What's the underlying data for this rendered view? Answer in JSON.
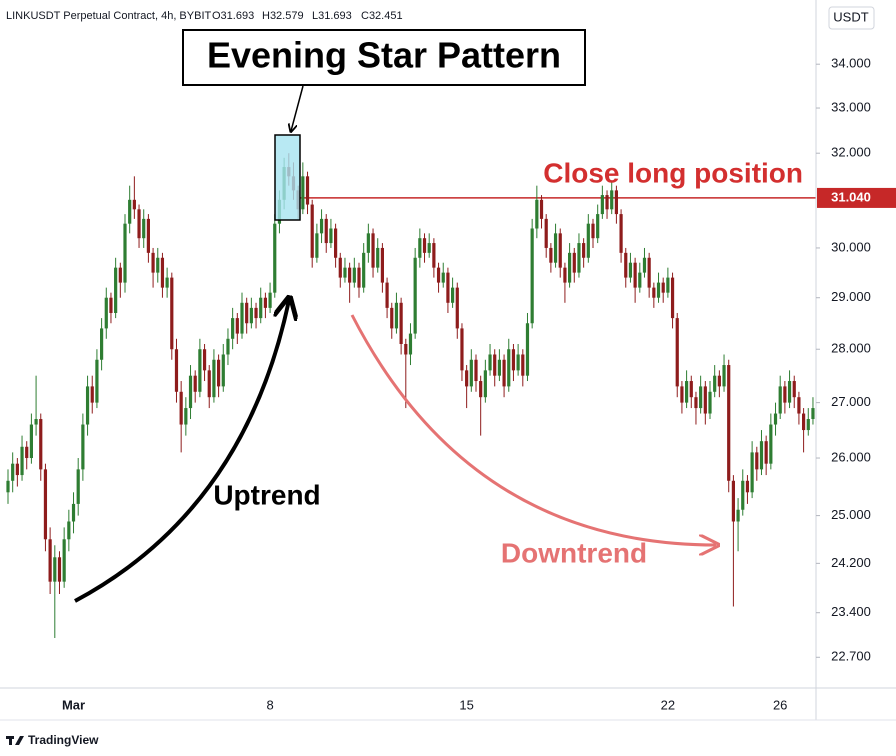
{
  "chart_data": {
    "type": "candlestick",
    "title": "LINKUSDT Perpetual Contract, 4h, BYBIT",
    "ohlc_legend": [
      "O31.693",
      "H32.579",
      "L31.693",
      "C32.451"
    ],
    "currency": "USDT",
    "brand": "TradingView",
    "log_scale": true,
    "up_color": "#2e7d32",
    "down_color": "#8e1c1c",
    "ylim": [
      22.23,
      35.52
    ],
    "yticks": [
      {
        "value": 34,
        "label": "34.000"
      },
      {
        "value": 33,
        "label": "33.000"
      },
      {
        "value": 32,
        "label": "32.000"
      },
      {
        "value": 30,
        "label": "30.000"
      },
      {
        "value": 29,
        "label": "29.000"
      },
      {
        "value": 28,
        "label": "28.000"
      },
      {
        "value": 27,
        "label": "27.000"
      },
      {
        "value": 26,
        "label": "26.000"
      },
      {
        "value": 25,
        "label": "25.000"
      },
      {
        "value": 24.2,
        "label": "24.200"
      },
      {
        "value": 23.4,
        "label": "23.400"
      },
      {
        "value": 22.7,
        "label": "22.700"
      }
    ],
    "hline": {
      "value": 31.04,
      "label": "31.040"
    },
    "annotations": {
      "pattern": "Evening Star Pattern",
      "hline_text": "Close long position",
      "uptrend": "Uptrend",
      "downtrend": "Downtrend"
    },
    "categories": [
      null,
      null,
      null,
      null,
      null,
      null,
      null,
      null,
      null,
      null,
      null,
      null,
      null,
      null,
      "Mar",
      null,
      null,
      null,
      null,
      null,
      null,
      null,
      null,
      null,
      null,
      null,
      null,
      null,
      null,
      null,
      null,
      null,
      null,
      null,
      null,
      null,
      null,
      null,
      null,
      null,
      null,
      null,
      null,
      null,
      null,
      null,
      null,
      null,
      null,
      null,
      null,
      null,
      null,
      null,
      null,
      null,
      "8",
      null,
      null,
      null,
      null,
      null,
      null,
      null,
      null,
      null,
      null,
      null,
      null,
      null,
      null,
      null,
      null,
      null,
      null,
      null,
      null,
      null,
      null,
      null,
      null,
      null,
      null,
      null,
      null,
      null,
      null,
      null,
      null,
      null,
      null,
      null,
      null,
      null,
      null,
      null,
      null,
      null,
      "15",
      null,
      null,
      null,
      null,
      null,
      null,
      null,
      null,
      null,
      null,
      null,
      null,
      null,
      null,
      null,
      null,
      null,
      null,
      null,
      null,
      null,
      null,
      null,
      null,
      null,
      null,
      null,
      null,
      null,
      null,
      null,
      null,
      null,
      null,
      null,
      null,
      null,
      null,
      null,
      null,
      null,
      null,
      "22",
      null,
      null,
      null,
      null,
      null,
      null,
      null,
      null,
      null,
      null,
      null,
      null,
      null,
      null,
      null,
      null,
      null,
      null,
      null,
      null,
      null,
      null,
      null,
      "26",
      null,
      null,
      null,
      null,
      null,
      null,
      null,
      null
    ],
    "ohlc": [
      [
        25.4,
        25.8,
        25.2,
        25.6
      ],
      [
        25.6,
        26.1,
        25.4,
        25.9
      ],
      [
        25.9,
        26.0,
        25.5,
        25.7
      ],
      [
        25.7,
        26.4,
        25.6,
        26.2
      ],
      [
        26.2,
        26.3,
        25.8,
        26.0
      ],
      [
        26.0,
        26.8,
        25.9,
        26.6
      ],
      [
        26.6,
        27.5,
        26.4,
        26.7
      ],
      [
        26.7,
        26.8,
        25.6,
        25.8
      ],
      [
        25.8,
        25.9,
        24.4,
        24.6
      ],
      [
        24.6,
        24.8,
        23.7,
        23.9
      ],
      [
        23.9,
        24.5,
        23.0,
        24.3
      ],
      [
        24.3,
        24.4,
        23.7,
        23.9
      ],
      [
        23.9,
        24.8,
        23.8,
        24.6
      ],
      [
        24.6,
        25.1,
        24.4,
        24.9
      ],
      [
        24.9,
        25.4,
        24.7,
        25.2
      ],
      [
        25.2,
        26.0,
        25.0,
        25.8
      ],
      [
        25.8,
        26.8,
        25.6,
        26.6
      ],
      [
        26.6,
        27.5,
        26.4,
        27.3
      ],
      [
        27.3,
        27.5,
        26.8,
        27.0
      ],
      [
        27.0,
        28.0,
        26.9,
        27.8
      ],
      [
        27.8,
        28.6,
        27.6,
        28.4
      ],
      [
        28.4,
        29.2,
        28.2,
        29.0
      ],
      [
        29.0,
        29.1,
        28.5,
        28.7
      ],
      [
        28.7,
        29.8,
        28.6,
        29.6
      ],
      [
        29.6,
        29.7,
        29.0,
        29.3
      ],
      [
        29.3,
        30.7,
        29.1,
        30.5
      ],
      [
        30.5,
        31.3,
        30.3,
        31.0
      ],
      [
        31.0,
        31.5,
        30.6,
        30.8
      ],
      [
        30.8,
        30.9,
        30.0,
        30.2
      ],
      [
        30.2,
        30.8,
        30.0,
        30.6
      ],
      [
        30.6,
        30.7,
        29.7,
        29.9
      ],
      [
        29.9,
        30.0,
        29.2,
        29.5
      ],
      [
        29.5,
        30.0,
        29.3,
        29.8
      ],
      [
        29.8,
        29.9,
        29.0,
        29.2
      ],
      [
        29.2,
        29.6,
        29.0,
        29.4
      ],
      [
        29.4,
        29.5,
        27.8,
        28.0
      ],
      [
        28.0,
        28.2,
        27.0,
        27.2
      ],
      [
        27.2,
        27.4,
        26.1,
        26.6
      ],
      [
        26.6,
        27.1,
        26.4,
        26.9
      ],
      [
        26.9,
        27.7,
        26.7,
        27.5
      ],
      [
        27.5,
        27.6,
        27.0,
        27.2
      ],
      [
        27.2,
        28.2,
        27.1,
        28.0
      ],
      [
        28.0,
        28.1,
        27.4,
        27.6
      ],
      [
        27.6,
        27.7,
        26.9,
        27.1
      ],
      [
        27.1,
        28.0,
        27.0,
        27.8
      ],
      [
        27.8,
        27.9,
        27.1,
        27.3
      ],
      [
        27.3,
        28.1,
        27.2,
        27.9
      ],
      [
        27.9,
        28.4,
        27.7,
        28.2
      ],
      [
        28.2,
        28.8,
        28.0,
        28.6
      ],
      [
        28.6,
        28.7,
        28.1,
        28.3
      ],
      [
        28.3,
        29.1,
        28.2,
        28.9
      ],
      [
        28.9,
        29.0,
        28.3,
        28.5
      ],
      [
        28.5,
        29.0,
        28.4,
        28.8
      ],
      [
        28.8,
        28.9,
        28.4,
        28.6
      ],
      [
        28.6,
        29.2,
        28.5,
        29.0
      ],
      [
        29.0,
        29.1,
        28.6,
        28.8
      ],
      [
        28.8,
        29.3,
        28.7,
        29.1
      ],
      [
        29.1,
        30.7,
        29.0,
        30.5
      ],
      [
        30.5,
        31.2,
        30.3,
        31.0
      ],
      [
        31.0,
        31.9,
        30.8,
        31.7
      ],
      [
        31.7,
        32.0,
        31.3,
        31.5
      ],
      [
        31.5,
        31.8,
        31.0,
        31.2
      ],
      [
        31.2,
        31.3,
        30.6,
        30.8
      ],
      [
        30.8,
        31.8,
        30.7,
        31.5
      ],
      [
        31.5,
        31.6,
        30.7,
        30.9
      ],
      [
        30.9,
        31.0,
        29.6,
        29.8
      ],
      [
        29.8,
        30.5,
        29.7,
        30.3
      ],
      [
        30.3,
        30.8,
        30.1,
        30.6
      ],
      [
        30.6,
        30.7,
        29.9,
        30.1
      ],
      [
        30.1,
        30.6,
        30.0,
        30.4
      ],
      [
        30.4,
        30.5,
        29.6,
        29.8
      ],
      [
        29.8,
        29.9,
        29.2,
        29.4
      ],
      [
        29.4,
        29.8,
        29.3,
        29.6
      ],
      [
        29.6,
        29.7,
        28.9,
        29.3
      ],
      [
        29.3,
        29.8,
        29.2,
        29.6
      ],
      [
        29.6,
        29.7,
        29.0,
        29.2
      ],
      [
        29.2,
        30.1,
        29.1,
        29.9
      ],
      [
        29.9,
        30.5,
        29.7,
        30.3
      ],
      [
        30.3,
        30.4,
        29.4,
        29.6
      ],
      [
        29.6,
        30.2,
        29.5,
        30.0
      ],
      [
        30.0,
        30.1,
        29.1,
        29.3
      ],
      [
        29.3,
        29.4,
        28.6,
        28.8
      ],
      [
        28.8,
        28.9,
        28.2,
        28.4
      ],
      [
        28.4,
        29.1,
        28.3,
        28.9
      ],
      [
        28.9,
        29.0,
        27.9,
        28.1
      ],
      [
        28.1,
        28.2,
        26.9,
        27.9
      ],
      [
        27.9,
        28.5,
        27.7,
        28.3
      ],
      [
        28.3,
        30.0,
        28.2,
        29.8
      ],
      [
        29.8,
        30.4,
        29.6,
        30.2
      ],
      [
        30.2,
        30.3,
        29.7,
        29.9
      ],
      [
        29.9,
        30.3,
        29.8,
        30.1
      ],
      [
        30.1,
        30.2,
        29.4,
        29.6
      ],
      [
        29.6,
        29.7,
        29.1,
        29.3
      ],
      [
        29.3,
        29.7,
        29.2,
        29.5
      ],
      [
        29.5,
        29.6,
        28.7,
        28.9
      ],
      [
        28.9,
        29.4,
        28.8,
        29.2
      ],
      [
        29.2,
        29.3,
        28.2,
        28.4
      ],
      [
        28.4,
        28.5,
        27.4,
        27.6
      ],
      [
        27.6,
        27.7,
        26.9,
        27.3
      ],
      [
        27.3,
        28.0,
        27.2,
        27.8
      ],
      [
        27.8,
        27.9,
        27.2,
        27.4
      ],
      [
        27.4,
        27.5,
        26.4,
        27.1
      ],
      [
        27.1,
        27.8,
        27.0,
        27.6
      ],
      [
        27.6,
        28.1,
        27.5,
        27.9
      ],
      [
        27.9,
        28.0,
        27.3,
        27.5
      ],
      [
        27.5,
        28.0,
        27.4,
        27.8
      ],
      [
        27.8,
        27.9,
        27.1,
        27.3
      ],
      [
        27.3,
        28.2,
        27.2,
        28.0
      ],
      [
        28.0,
        28.1,
        27.4,
        27.6
      ],
      [
        27.6,
        28.1,
        27.5,
        27.9
      ],
      [
        27.9,
        28.0,
        27.3,
        27.5
      ],
      [
        27.5,
        28.7,
        27.4,
        28.5
      ],
      [
        28.5,
        30.6,
        28.4,
        30.4
      ],
      [
        30.4,
        31.3,
        30.2,
        31.0
      ],
      [
        31.0,
        31.1,
        30.4,
        30.6
      ],
      [
        30.6,
        30.7,
        29.8,
        30.0
      ],
      [
        30.0,
        30.1,
        29.5,
        29.7
      ],
      [
        29.7,
        30.5,
        29.6,
        30.3
      ],
      [
        30.3,
        30.4,
        29.4,
        29.6
      ],
      [
        29.6,
        29.7,
        28.9,
        29.3
      ],
      [
        29.3,
        30.1,
        29.2,
        29.9
      ],
      [
        29.9,
        30.0,
        29.3,
        29.5
      ],
      [
        29.5,
        30.3,
        29.4,
        30.1
      ],
      [
        30.1,
        30.2,
        29.6,
        29.8
      ],
      [
        29.8,
        30.7,
        29.7,
        30.5
      ],
      [
        30.5,
        30.6,
        30.0,
        30.2
      ],
      [
        30.2,
        30.9,
        30.1,
        30.7
      ],
      [
        30.7,
        31.3,
        30.6,
        31.1
      ],
      [
        31.1,
        31.2,
        30.6,
        30.8
      ],
      [
        30.8,
        31.4,
        30.7,
        31.2
      ],
      [
        31.2,
        31.3,
        30.5,
        30.7
      ],
      [
        30.7,
        30.8,
        29.7,
        29.9
      ],
      [
        29.9,
        30.0,
        29.2,
        29.4
      ],
      [
        29.4,
        29.9,
        29.3,
        29.7
      ],
      [
        29.7,
        29.8,
        28.9,
        29.2
      ],
      [
        29.2,
        29.7,
        29.1,
        29.5
      ],
      [
        29.5,
        30.0,
        29.4,
        29.8
      ],
      [
        29.8,
        29.9,
        29.0,
        29.2
      ],
      [
        29.2,
        29.3,
        28.8,
        29.0
      ],
      [
        29.0,
        29.5,
        28.9,
        29.3
      ],
      [
        29.3,
        29.4,
        28.9,
        29.1
      ],
      [
        29.1,
        29.6,
        29.0,
        29.4
      ],
      [
        29.4,
        29.5,
        28.4,
        28.6
      ],
      [
        28.6,
        28.7,
        27.1,
        27.3
      ],
      [
        27.3,
        27.4,
        26.8,
        27.0
      ],
      [
        27.0,
        27.6,
        26.9,
        27.4
      ],
      [
        27.4,
        27.5,
        26.9,
        27.1
      ],
      [
        27.1,
        27.2,
        26.6,
        26.9
      ],
      [
        26.9,
        27.5,
        26.8,
        27.3
      ],
      [
        27.3,
        27.4,
        26.6,
        26.8
      ],
      [
        26.8,
        27.4,
        26.7,
        27.2
      ],
      [
        27.2,
        27.7,
        27.1,
        27.5
      ],
      [
        27.5,
        27.6,
        27.1,
        27.3
      ],
      [
        27.3,
        27.9,
        27.2,
        27.7
      ],
      [
        27.7,
        27.8,
        25.4,
        25.6
      ],
      [
        25.6,
        25.7,
        23.5,
        24.9
      ],
      [
        24.9,
        25.3,
        24.4,
        25.1
      ],
      [
        25.1,
        25.8,
        25.0,
        25.6
      ],
      [
        25.6,
        25.7,
        25.2,
        25.4
      ],
      [
        25.4,
        26.3,
        25.3,
        26.1
      ],
      [
        26.1,
        26.2,
        25.6,
        25.8
      ],
      [
        25.8,
        26.5,
        25.7,
        26.3
      ],
      [
        26.3,
        26.4,
        25.7,
        25.9
      ],
      [
        25.9,
        26.8,
        25.8,
        26.6
      ],
      [
        26.6,
        27.0,
        26.4,
        26.8
      ],
      [
        26.8,
        27.5,
        26.7,
        27.3
      ],
      [
        27.3,
        27.4,
        26.8,
        27.0
      ],
      [
        27.0,
        27.6,
        26.9,
        27.4
      ],
      [
        27.4,
        27.5,
        26.9,
        27.1
      ],
      [
        27.1,
        27.2,
        26.6,
        26.8
      ],
      [
        26.8,
        26.9,
        26.1,
        26.5
      ],
      [
        26.5,
        26.9,
        26.4,
        26.7
      ],
      [
        26.7,
        27.1,
        26.6,
        26.9
      ]
    ]
  }
}
